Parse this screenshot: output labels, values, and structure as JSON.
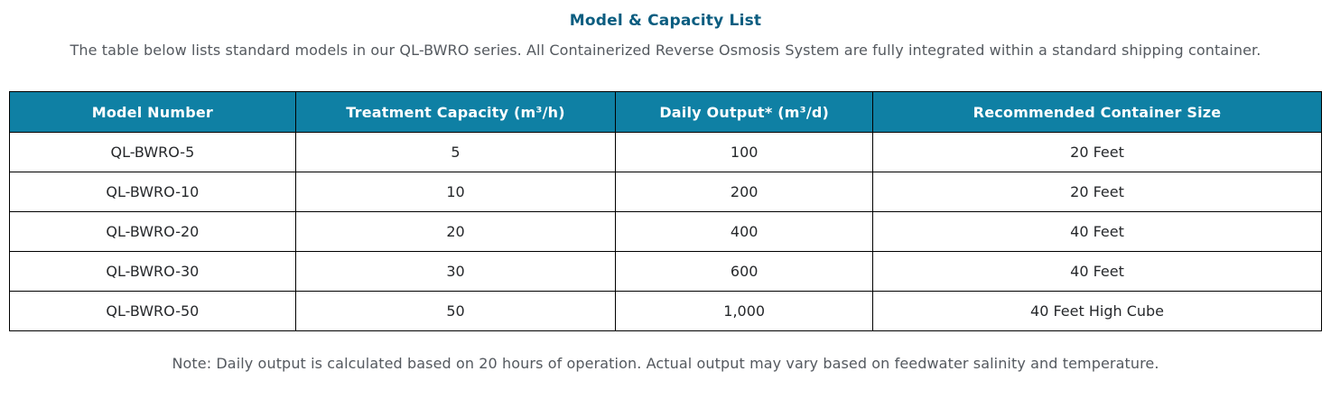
{
  "page": {
    "title": "Model & Capacity List",
    "subtitle": "The table below lists standard models in our QL-BWRO series. All Containerized Reverse Osmosis System are fully integrated within a standard shipping container.",
    "note": "Note: Daily output is calculated based on 20 hours of operation. Actual output may vary based on feedwater salinity and temperature."
  },
  "table": {
    "headers": [
      "Model Number",
      "Treatment Capacity (m³/h)",
      "Daily Output* (m³/d)",
      "Recommended Container Size"
    ],
    "rows": [
      [
        "QL-BWRO-5",
        "5",
        "100",
        "20 Feet"
      ],
      [
        "QL-BWRO-10",
        "10",
        "200",
        "20 Feet"
      ],
      [
        "QL-BWRO-20",
        "20",
        "400",
        "40 Feet"
      ],
      [
        "QL-BWRO-30",
        "30",
        "600",
        "40 Feet"
      ],
      [
        "QL-BWRO-50",
        "50",
        "1,000",
        "40 Feet High Cube"
      ]
    ]
  },
  "colors": {
    "header_background": "#0f80a4",
    "header_text": "#ffffff",
    "title_text": "#0b5d80",
    "body_text": "#26282b",
    "muted_text": "#54595f",
    "table_border": "#000000"
  }
}
